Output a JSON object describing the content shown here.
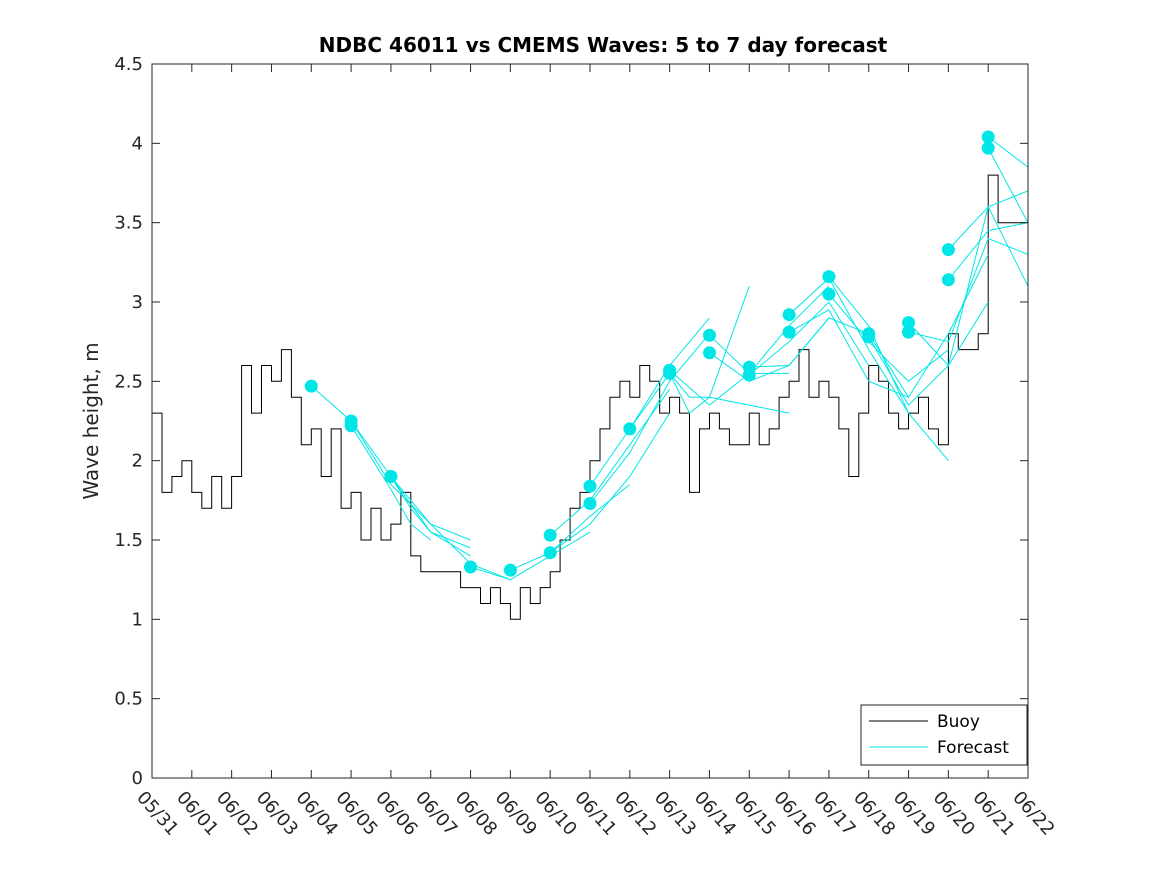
{
  "chart_data": {
    "type": "line",
    "title": "NDBC 46011 vs CMEMS Waves: 5 to 7 day forecast",
    "xlabel": "",
    "ylabel": "Wave height, m",
    "ylim": [
      0,
      4.5
    ],
    "yticks": [
      "0",
      "0.5",
      "1",
      "1.5",
      "2",
      "2.5",
      "3",
      "3.5",
      "4",
      "4.5"
    ],
    "xlim": [
      "05/31",
      "06/22"
    ],
    "xticks": [
      "05/31",
      "06/01",
      "06/02",
      "06/03",
      "06/04",
      "06/05",
      "06/06",
      "06/07",
      "06/08",
      "06/09",
      "06/10",
      "06/11",
      "06/12",
      "06/13",
      "06/14",
      "06/15",
      "06/16",
      "06/17",
      "06/18",
      "06/19",
      "06/20",
      "06/21",
      "06/22"
    ],
    "grid": false,
    "legend": {
      "position": "bottom-right",
      "entries": [
        "Buoy",
        "Forecast"
      ]
    },
    "colors": {
      "buoy": "#000000",
      "forecast": "#00e6e6"
    },
    "series": [
      {
        "name": "Buoy",
        "x": [
          "05/31",
          "05/31 06h",
          "05/31 12h",
          "05/31 18h",
          "06/01",
          "06/01 06h",
          "06/01 12h",
          "06/01 18h",
          "06/02",
          "06/02 06h",
          "06/02 12h",
          "06/02 18h",
          "06/03",
          "06/03 06h",
          "06/03 12h",
          "06/03 18h",
          "06/04",
          "06/04 06h",
          "06/04 12h",
          "06/04 18h",
          "06/05",
          "06/05 06h",
          "06/05 12h",
          "06/05 18h",
          "06/06",
          "06/06 06h",
          "06/06 12h",
          "06/06 18h",
          "06/07",
          "06/07 06h",
          "06/07 12h",
          "06/07 18h",
          "06/08",
          "06/08 06h",
          "06/08 12h",
          "06/08 18h",
          "06/09",
          "06/09 06h",
          "06/09 12h",
          "06/09 18h",
          "06/10",
          "06/10 06h",
          "06/10 12h",
          "06/10 18h",
          "06/11",
          "06/11 06h",
          "06/11 12h",
          "06/11 18h",
          "06/12",
          "06/12 06h",
          "06/12 12h",
          "06/12 18h",
          "06/13",
          "06/13 06h",
          "06/13 12h",
          "06/13 18h",
          "06/14",
          "06/14 06h",
          "06/14 12h",
          "06/14 18h",
          "06/15",
          "06/15 06h",
          "06/15 12h",
          "06/15 18h",
          "06/16",
          "06/16 06h",
          "06/16 12h",
          "06/16 18h",
          "06/17",
          "06/17 06h",
          "06/17 12h",
          "06/17 18h",
          "06/18",
          "06/18 06h",
          "06/18 12h",
          "06/18 18h",
          "06/19",
          "06/19 06h",
          "06/19 12h",
          "06/19 18h",
          "06/20",
          "06/20 06h",
          "06/20 12h",
          "06/20 18h",
          "06/21",
          "06/21 06h",
          "06/21 12h",
          "06/21 18h",
          "06/22"
        ],
        "values": [
          2.3,
          1.8,
          1.9,
          2.0,
          1.8,
          1.7,
          1.9,
          1.7,
          1.9,
          2.6,
          2.3,
          2.6,
          2.5,
          2.7,
          2.4,
          2.1,
          2.2,
          1.9,
          2.2,
          1.7,
          1.8,
          1.5,
          1.7,
          1.5,
          1.6,
          1.8,
          1.4,
          1.3,
          1.3,
          1.3,
          1.3,
          1.2,
          1.2,
          1.1,
          1.2,
          1.1,
          1.0,
          1.2,
          1.1,
          1.2,
          1.3,
          1.5,
          1.7,
          1.8,
          2.0,
          2.2,
          2.4,
          2.5,
          2.4,
          2.6,
          2.5,
          2.3,
          2.4,
          2.3,
          1.8,
          2.2,
          2.3,
          2.2,
          2.1,
          2.1,
          2.3,
          2.1,
          2.2,
          2.4,
          2.5,
          2.7,
          2.4,
          2.5,
          2.4,
          2.2,
          1.9,
          2.3,
          2.6,
          2.5,
          2.3,
          2.2,
          2.3,
          2.4,
          2.2,
          2.1,
          2.8,
          2.7,
          2.7,
          2.8,
          3.8,
          3.5,
          3.5,
          3.5,
          3.7
        ]
      },
      {
        "name": "Forecast",
        "runs": [
          {
            "x": [
              "06/04",
              "06/05",
              "06/06",
              "06/07",
              "06/08"
            ],
            "values": [
              2.47,
              2.25,
              1.85,
              1.6,
              1.5
            ]
          },
          {
            "x": [
              "06/05",
              "06/06",
              "06/07",
              "06/08"
            ],
            "values": [
              2.25,
              1.9,
              1.55,
              1.45
            ]
          },
          {
            "x": [
              "06/05",
              "06/06",
              "06/06 12h",
              "06/07"
            ],
            "values": [
              2.22,
              1.82,
              1.6,
              1.5
            ]
          },
          {
            "x": [
              "06/06",
              "06/07",
              "06/08",
              "06/09"
            ],
            "values": [
              1.9,
              1.6,
              1.35,
              1.25
            ]
          },
          {
            "x": [
              "06/06",
              "06/06 12h",
              "06/07",
              "06/08"
            ],
            "values": [
              1.9,
              1.7,
              1.55,
              1.4
            ]
          },
          {
            "x": [
              "06/08",
              "06/09",
              "06/10",
              "06/11"
            ],
            "values": [
              1.33,
              1.25,
              1.4,
              1.55
            ]
          },
          {
            "x": [
              "06/09",
              "06/10",
              "06/11",
              "06/12"
            ],
            "values": [
              1.31,
              1.42,
              1.65,
              1.85
            ]
          },
          {
            "x": [
              "06/10",
              "06/11",
              "06/12",
              "06/13"
            ],
            "values": [
              1.42,
              1.6,
              1.9,
              2.3
            ]
          },
          {
            "x": [
              "06/10",
              "06/11",
              "06/12",
              "06/13"
            ],
            "values": [
              1.53,
              1.75,
              2.1,
              2.45
            ]
          },
          {
            "x": [
              "06/11",
              "06/12",
              "06/13",
              "06/14"
            ],
            "values": [
              1.73,
              2.05,
              2.5,
              2.8
            ]
          },
          {
            "x": [
              "06/11",
              "06/12",
              "06/13",
              "06/14"
            ],
            "values": [
              1.84,
              2.2,
              2.6,
              2.9
            ]
          },
          {
            "x": [
              "06/12",
              "06/13",
              "06/13 12h",
              "06/14",
              "06/15"
            ],
            "values": [
              2.2,
              2.55,
              2.3,
              2.4,
              3.1
            ]
          },
          {
            "x": [
              "06/13",
              "06/14",
              "06/15",
              "06/16"
            ],
            "values": [
              2.57,
              2.35,
              2.55,
              2.55
            ]
          },
          {
            "x": [
              "06/13",
              "06/13 12h",
              "06/14",
              "06/15",
              "06/16"
            ],
            "values": [
              2.55,
              2.4,
              2.4,
              2.35,
              2.3
            ]
          },
          {
            "x": [
              "06/14",
              "06/15",
              "06/16",
              "06/17"
            ],
            "values": [
              2.79,
              2.55,
              2.85,
              3.1
            ]
          },
          {
            "x": [
              "06/14",
              "06/15",
              "06/16",
              "06/17"
            ],
            "values": [
              2.68,
              2.5,
              2.6,
              2.9
            ]
          },
          {
            "x": [
              "06/15",
              "06/16",
              "06/17",
              "06/18"
            ],
            "values": [
              2.59,
              2.6,
              2.9,
              2.8
            ]
          },
          {
            "x": [
              "06/15",
              "06/16",
              "06/17",
              "06/18"
            ],
            "values": [
              2.54,
              2.75,
              3.0,
              2.6
            ]
          },
          {
            "x": [
              "06/16",
              "06/17",
              "06/18",
              "06/19"
            ],
            "values": [
              2.92,
              3.15,
              2.7,
              2.3
            ]
          },
          {
            "x": [
              "06/16",
              "06/17",
              "06/18",
              "06/19"
            ],
            "values": [
              2.81,
              2.95,
              2.5,
              2.4
            ]
          },
          {
            "x": [
              "06/17",
              "06/18",
              "06/19",
              "06/20"
            ],
            "values": [
              3.16,
              2.85,
              2.3,
              2.0
            ]
          },
          {
            "x": [
              "06/17",
              "06/18",
              "06/19",
              "06/20"
            ],
            "values": [
              3.05,
              2.75,
              2.5,
              2.7
            ]
          },
          {
            "x": [
              "06/18",
              "06/19",
              "06/20",
              "06/21"
            ],
            "values": [
              2.8,
              2.4,
              2.8,
              3.3
            ]
          },
          {
            "x": [
              "06/18",
              "06/19",
              "06/20",
              "06/21"
            ],
            "values": [
              2.78,
              2.35,
              2.6,
              3.0
            ]
          },
          {
            "x": [
              "06/19",
              "06/20",
              "06/21",
              "06/22"
            ],
            "values": [
              2.87,
              2.6,
              3.6,
              3.1
            ]
          },
          {
            "x": [
              "06/19",
              "06/20",
              "06/21",
              "06/22"
            ],
            "values": [
              2.81,
              2.75,
              3.4,
              3.3
            ]
          },
          {
            "x": [
              "06/20",
              "06/21",
              "06/22"
            ],
            "values": [
              3.33,
              3.6,
              3.7
            ]
          },
          {
            "x": [
              "06/20",
              "06/21",
              "06/22"
            ],
            "values": [
              3.14,
              3.45,
              3.5
            ]
          },
          {
            "x": [
              "06/21",
              "06/22"
            ],
            "values": [
              4.04,
              3.85
            ]
          },
          {
            "x": [
              "06/21",
              "06/22"
            ],
            "values": [
              3.97,
              3.5
            ]
          }
        ],
        "markers": {
          "x": [
            "06/04",
            "06/05",
            "06/05",
            "06/06",
            "06/06",
            "06/08",
            "06/09",
            "06/10",
            "06/10",
            "06/11",
            "06/11",
            "06/12",
            "06/13",
            "06/13",
            "06/14",
            "06/14",
            "06/15",
            "06/15",
            "06/16",
            "06/16",
            "06/17",
            "06/17",
            "06/18",
            "06/18",
            "06/19",
            "06/19",
            "06/20",
            "06/20",
            "06/21",
            "06/21"
          ],
          "values": [
            2.47,
            2.25,
            2.22,
            1.9,
            1.9,
            1.33,
            1.31,
            1.42,
            1.53,
            1.73,
            1.84,
            2.2,
            2.57,
            2.55,
            2.79,
            2.68,
            2.59,
            2.54,
            2.92,
            2.81,
            3.16,
            3.05,
            2.8,
            2.78,
            2.87,
            2.81,
            3.33,
            3.14,
            4.04,
            3.97
          ]
        }
      }
    ]
  }
}
